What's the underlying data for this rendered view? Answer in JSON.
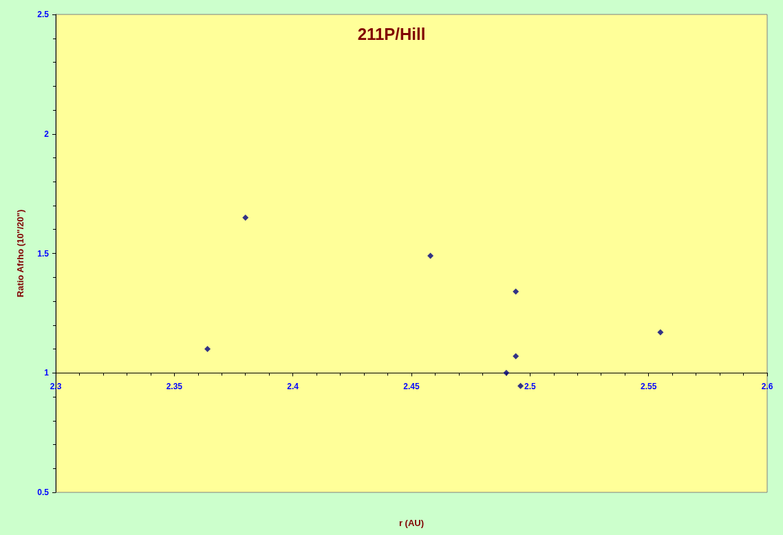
{
  "chart_data": {
    "type": "scatter",
    "title": "211P/Hill",
    "xlabel": "r (AU)",
    "ylabel": "Ratio Afrho (10\"/20\")",
    "x": [
      2.364,
      2.38,
      2.458,
      2.494,
      2.494,
      2.49,
      2.496,
      2.555
    ],
    "series": [
      {
        "color": "#000080",
        "values": [
          1.1,
          1.65,
          1.49,
          1.34,
          1.07,
          1.0,
          0.945,
          1.17
        ]
      }
    ],
    "xlim": [
      2.3,
      2.6
    ],
    "xticks": [
      2.3,
      2.35,
      2.4,
      2.45,
      2.5,
      2.55,
      2.6
    ],
    "ylim": [
      0.5,
      2.5
    ],
    "yticks": [
      0.5,
      1,
      1.5,
      2,
      2.5
    ],
    "marker": "diamond"
  }
}
